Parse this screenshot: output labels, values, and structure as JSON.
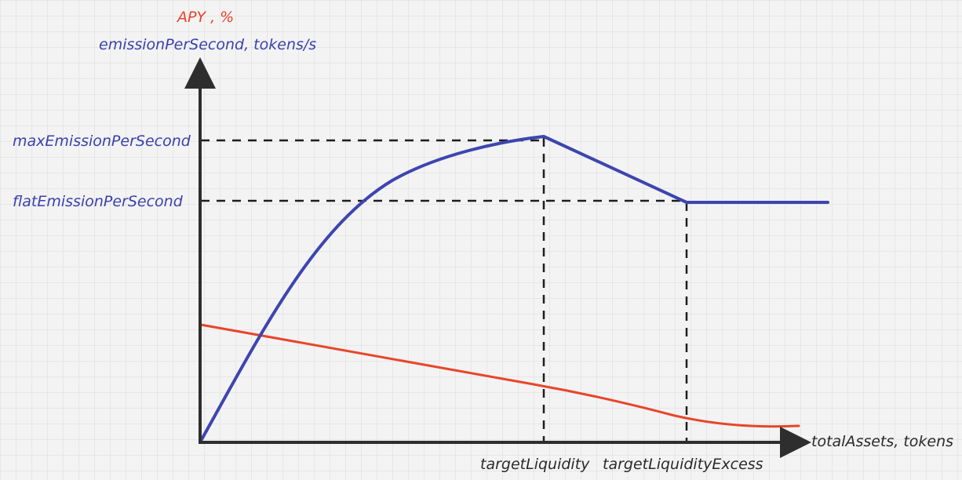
{
  "labels": {
    "y_axis_secondary": "APY , %",
    "y_axis_primary": "emissionPerSecond, tokens/s",
    "x_axis": "totalAssets, tokens",
    "y_max_emission": "maxEmissionPerSecond",
    "y_flat_emission": "flatEmissionPerSecond",
    "x_target_liquidity": "targetLiquidity",
    "x_target_liquidity_excess": "targetLiquidityExcess"
  },
  "colors": {
    "emission_curve": "#3d45b0",
    "apy_curve": "#e8452a",
    "axis": "#2e2e2e",
    "guides": "#1e1e1e",
    "background": "#f3f3f3"
  }
}
